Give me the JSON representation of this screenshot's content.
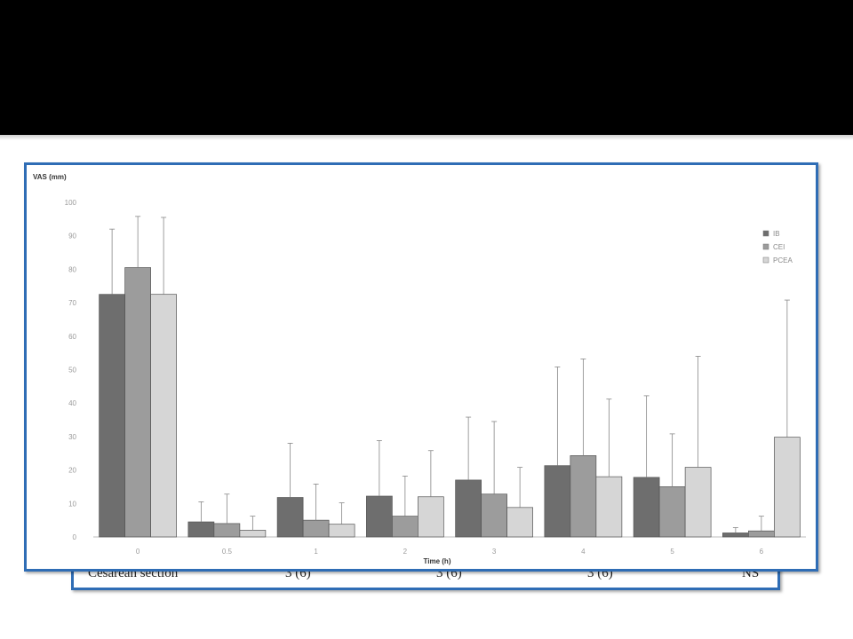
{
  "table_row": {
    "label": "Cesarean section",
    "col1": "3 (6)",
    "col2": "3 (6)",
    "col3": "3 (6)",
    "sig": "NS"
  },
  "chart_data": {
    "type": "bar",
    "ylabel": "VAS (mm)",
    "xlabel": "Time (h)",
    "ylim": [
      0,
      100
    ],
    "yticks": [
      0,
      10,
      20,
      30,
      40,
      50,
      60,
      70,
      80,
      90,
      100
    ],
    "categories": [
      "0",
      "0.5",
      "1",
      "2",
      "3",
      "4",
      "5",
      "6"
    ],
    "legend_position": "top-right",
    "series": [
      {
        "name": "IB",
        "color": "#6e6e6e",
        "values": [
          72.5,
          4.5,
          11.8,
          12.2,
          17.0,
          21.3,
          17.8,
          1.2
        ],
        "error": [
          92.0,
          10.5,
          28.0,
          28.8,
          35.8,
          50.8,
          42.2,
          2.8
        ]
      },
      {
        "name": "CEI",
        "color": "#9c9c9c",
        "values": [
          80.5,
          4.0,
          5.0,
          6.2,
          12.8,
          24.3,
          15.0,
          1.8
        ],
        "error": [
          95.8,
          12.8,
          15.8,
          18.2,
          34.5,
          53.2,
          30.8,
          6.2
        ]
      },
      {
        "name": "PCEA",
        "color": "#d6d6d6",
        "values": [
          72.5,
          2.0,
          3.8,
          12.0,
          8.8,
          18.0,
          20.8,
          29.8
        ],
        "error": [
          95.5,
          6.2,
          10.2,
          25.8,
          20.8,
          41.2,
          54.0,
          70.8
        ]
      }
    ]
  }
}
